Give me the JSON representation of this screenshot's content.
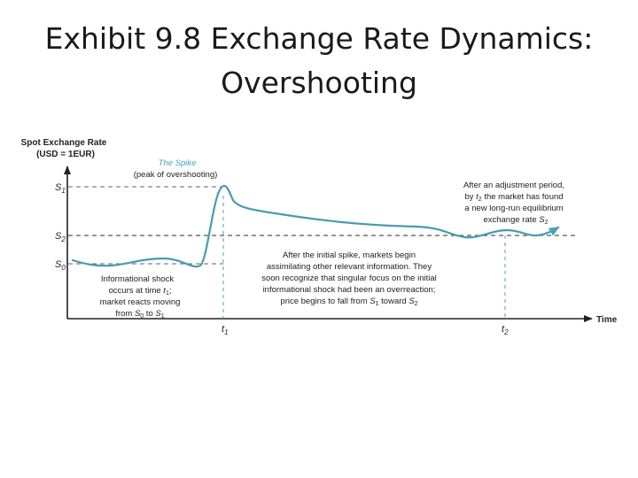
{
  "title": {
    "line1": "Exhibit 9.8  Exchange Rate Dynamics:",
    "line2": "Overshooting"
  },
  "colors": {
    "curve": "#4a9ab0",
    "accent_blue": "#4aa0b8",
    "axis": "#222222",
    "guide_dashed": "#666666",
    "annotation_text": "#222222"
  },
  "axes": {
    "y_title_line1": "Spot Exchange Rate",
    "y_title_line2": "(USD = 1EUR)",
    "x_title": "Time",
    "y_levels": [
      {
        "label": "S",
        "sub": "1"
      },
      {
        "label": "S",
        "sub": "2"
      },
      {
        "label": "S",
        "sub": "0"
      }
    ],
    "x_marks": [
      {
        "label": "t",
        "sub": "1"
      },
      {
        "label": "t",
        "sub": "2"
      }
    ]
  },
  "annotations": {
    "spike_title": "The Spike",
    "spike_sub": "(peak of overshooting)",
    "shock_line1": "Informational shock",
    "shock_line2_pre": "occurs at time",
    "shock_line2_var": "t",
    "shock_line2_sub": "1",
    "shock_line2_post": ";",
    "shock_line3": "market reacts moving",
    "shock_line4_pre": "from",
    "shock_line4_v1": "S",
    "shock_line4_s1": "0",
    "shock_line4_mid": "to",
    "shock_line4_v2": "S",
    "shock_line4_s2": "1",
    "spike_after_line1": "After the initial spike, markets begin",
    "spike_after_line2": "assimilating other relevant information. They",
    "spike_after_line3": "soon recognize that singular focus on the initial",
    "spike_after_line4": "informational shock had been an overreaction;",
    "spike_after_line5_pre": "price begins to fall from",
    "spike_after_line5_v1": "S",
    "spike_after_line5_s1": "1",
    "spike_after_line5_mid": "toward",
    "spike_after_line5_v2": "S",
    "spike_after_line5_s2": "2",
    "adjust_line1": "After an adjustment period,",
    "adjust_line2_pre": "by",
    "adjust_line2_var": "t",
    "adjust_line2_sub": "2",
    "adjust_line2_post": "the market has found",
    "adjust_line3": "a new long-run equilibrium",
    "adjust_line4_pre": "exchange rate",
    "adjust_line4_var": "S",
    "adjust_line4_sub": "2"
  }
}
